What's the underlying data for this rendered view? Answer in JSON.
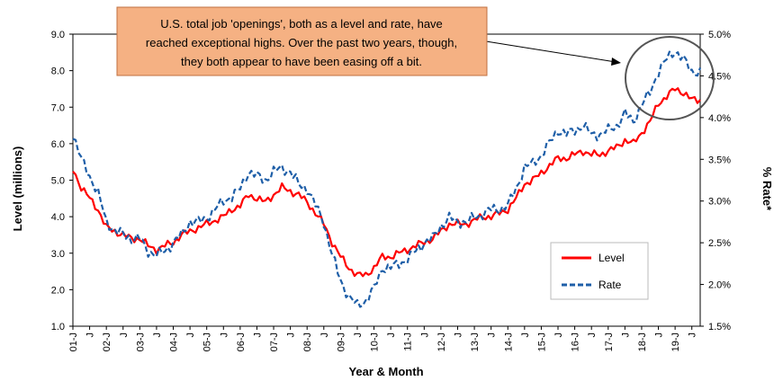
{
  "chart_data": {
    "type": "line",
    "title": "",
    "xlabel": "Year & Month",
    "ylabel_left": "Level (millions)",
    "ylabel_right": "% Rate*",
    "ylim_left": [
      1.0,
      9.0
    ],
    "ylim_right": [
      1.5,
      5.0
    ],
    "y_ticks_left": [
      "1.0",
      "2.0",
      "3.0",
      "4.0",
      "5.0",
      "6.0",
      "7.0",
      "8.0",
      "9.0"
    ],
    "y_ticks_right": [
      "1.5%",
      "2.0%",
      "2.5%",
      "3.0%",
      "3.5%",
      "4.0%",
      "4.5%",
      "5.0%"
    ],
    "x_ticks": [
      "01-J",
      "J",
      "02-J",
      "J",
      "03-J",
      "J",
      "04-J",
      "J",
      "05-J",
      "J",
      "06-J",
      "J",
      "07-J",
      "J",
      "08-J",
      "J",
      "09-J",
      "J",
      "10-J",
      "J",
      "11-J",
      "J",
      "12-J",
      "J",
      "13-J",
      "J",
      "14-J",
      "J",
      "15-J",
      "J",
      "16-J",
      "J",
      "17-J",
      "J",
      "18-J",
      "J",
      "19-J",
      "J"
    ],
    "x_range": [
      "2001-01",
      "2019-10"
    ],
    "grid": false,
    "legend_position": "bottom-right",
    "colors": {
      "level": "#ff0000",
      "rate": "#1f5fa8",
      "callout_fill": "#f5b183",
      "callout_border": "#c07040",
      "circle": "#555555"
    },
    "annotation": {
      "lines": [
        "U.S. total job 'openings', both as a level and rate, have",
        "reached exceptional highs. Over the past two years, though,",
        "they both appear to have been easing off a bit."
      ]
    },
    "series": [
      {
        "name": "Level",
        "axis": "left",
        "style": "solid",
        "points": [
          [
            "2001-01",
            5.3
          ],
          [
            "2001-04",
            4.8
          ],
          [
            "2001-07",
            4.5
          ],
          [
            "2001-10",
            4.2
          ],
          [
            "2002-01",
            3.7
          ],
          [
            "2002-04",
            3.6
          ],
          [
            "2002-07",
            3.5
          ],
          [
            "2002-10",
            3.4
          ],
          [
            "2003-01",
            3.4
          ],
          [
            "2003-04",
            3.2
          ],
          [
            "2003-07",
            3.1
          ],
          [
            "2003-10",
            3.2
          ],
          [
            "2004-01",
            3.3
          ],
          [
            "2004-04",
            3.5
          ],
          [
            "2004-07",
            3.6
          ],
          [
            "2004-10",
            3.7
          ],
          [
            "2005-01",
            3.8
          ],
          [
            "2005-04",
            3.9
          ],
          [
            "2005-07",
            4.0
          ],
          [
            "2005-10",
            4.2
          ],
          [
            "2006-01",
            4.3
          ],
          [
            "2006-04",
            4.6
          ],
          [
            "2006-07",
            4.5
          ],
          [
            "2006-10",
            4.4
          ],
          [
            "2007-01",
            4.6
          ],
          [
            "2007-04",
            4.8
          ],
          [
            "2007-07",
            4.7
          ],
          [
            "2007-10",
            4.6
          ],
          [
            "2008-01",
            4.4
          ],
          [
            "2008-04",
            4.1
          ],
          [
            "2008-07",
            3.8
          ],
          [
            "2008-10",
            3.3
          ],
          [
            "2009-01",
            2.9
          ],
          [
            "2009-04",
            2.6
          ],
          [
            "2009-07",
            2.4
          ],
          [
            "2009-10",
            2.4
          ],
          [
            "2010-01",
            2.6
          ],
          [
            "2010-04",
            2.9
          ],
          [
            "2010-07",
            2.9
          ],
          [
            "2010-10",
            3.0
          ],
          [
            "2011-01",
            3.1
          ],
          [
            "2011-04",
            3.2
          ],
          [
            "2011-07",
            3.3
          ],
          [
            "2011-10",
            3.4
          ],
          [
            "2012-01",
            3.6
          ],
          [
            "2012-04",
            3.8
          ],
          [
            "2012-07",
            3.8
          ],
          [
            "2012-10",
            3.8
          ],
          [
            "2013-01",
            3.9
          ],
          [
            "2013-04",
            4.0
          ],
          [
            "2013-07",
            4.0
          ],
          [
            "2013-10",
            4.1
          ],
          [
            "2014-01",
            4.2
          ],
          [
            "2014-04",
            4.5
          ],
          [
            "2014-07",
            4.9
          ],
          [
            "2014-10",
            5.0
          ],
          [
            "2015-01",
            5.2
          ],
          [
            "2015-04",
            5.4
          ],
          [
            "2015-07",
            5.6
          ],
          [
            "2015-10",
            5.6
          ],
          [
            "2016-01",
            5.7
          ],
          [
            "2016-04",
            5.8
          ],
          [
            "2016-07",
            5.7
          ],
          [
            "2016-10",
            5.7
          ],
          [
            "2017-01",
            5.8
          ],
          [
            "2017-04",
            5.9
          ],
          [
            "2017-07",
            6.1
          ],
          [
            "2017-10",
            6.0
          ],
          [
            "2018-01",
            6.3
          ],
          [
            "2018-04",
            6.6
          ],
          [
            "2018-07",
            7.1
          ],
          [
            "2018-10",
            7.3
          ],
          [
            "2019-01",
            7.5
          ],
          [
            "2019-04",
            7.4
          ],
          [
            "2019-07",
            7.2
          ],
          [
            "2019-10",
            7.2
          ]
        ]
      },
      {
        "name": "Rate",
        "axis": "right",
        "style": "dashed",
        "points": [
          [
            "2001-01",
            3.8
          ],
          [
            "2001-04",
            3.5
          ],
          [
            "2001-07",
            3.3
          ],
          [
            "2001-10",
            3.1
          ],
          [
            "2002-01",
            2.75
          ],
          [
            "2002-04",
            2.65
          ],
          [
            "2002-07",
            2.6
          ],
          [
            "2002-10",
            2.55
          ],
          [
            "2003-01",
            2.55
          ],
          [
            "2003-04",
            2.4
          ],
          [
            "2003-07",
            2.35
          ],
          [
            "2003-10",
            2.4
          ],
          [
            "2004-01",
            2.5
          ],
          [
            "2004-04",
            2.6
          ],
          [
            "2004-07",
            2.75
          ],
          [
            "2004-10",
            2.75
          ],
          [
            "2005-01",
            2.8
          ],
          [
            "2005-04",
            2.9
          ],
          [
            "2005-07",
            3.0
          ],
          [
            "2005-10",
            3.05
          ],
          [
            "2006-01",
            3.15
          ],
          [
            "2006-04",
            3.35
          ],
          [
            "2006-07",
            3.3
          ],
          [
            "2006-10",
            3.25
          ],
          [
            "2007-01",
            3.35
          ],
          [
            "2007-04",
            3.4
          ],
          [
            "2007-07",
            3.35
          ],
          [
            "2007-10",
            3.2
          ],
          [
            "2008-01",
            3.15
          ],
          [
            "2008-04",
            2.95
          ],
          [
            "2008-07",
            2.75
          ],
          [
            "2008-10",
            2.35
          ],
          [
            "2009-01",
            2.05
          ],
          [
            "2009-04",
            1.85
          ],
          [
            "2009-07",
            1.75
          ],
          [
            "2009-10",
            1.8
          ],
          [
            "2010-01",
            1.95
          ],
          [
            "2010-04",
            2.2
          ],
          [
            "2010-07",
            2.2
          ],
          [
            "2010-10",
            2.25
          ],
          [
            "2011-01",
            2.3
          ],
          [
            "2011-04",
            2.4
          ],
          [
            "2011-07",
            2.5
          ],
          [
            "2011-10",
            2.55
          ],
          [
            "2012-01",
            2.7
          ],
          [
            "2012-04",
            2.8
          ],
          [
            "2012-07",
            2.75
          ],
          [
            "2012-10",
            2.75
          ],
          [
            "2013-01",
            2.8
          ],
          [
            "2013-04",
            2.85
          ],
          [
            "2013-07",
            2.9
          ],
          [
            "2013-10",
            2.9
          ],
          [
            "2014-01",
            2.95
          ],
          [
            "2014-04",
            3.15
          ],
          [
            "2014-07",
            3.4
          ],
          [
            "2014-10",
            3.45
          ],
          [
            "2015-01",
            3.55
          ],
          [
            "2015-04",
            3.7
          ],
          [
            "2015-07",
            3.85
          ],
          [
            "2015-10",
            3.8
          ],
          [
            "2016-01",
            3.85
          ],
          [
            "2016-04",
            3.9
          ],
          [
            "2016-07",
            3.8
          ],
          [
            "2016-10",
            3.8
          ],
          [
            "2017-01",
            3.85
          ],
          [
            "2017-04",
            3.9
          ],
          [
            "2017-07",
            4.05
          ],
          [
            "2017-10",
            3.95
          ],
          [
            "2018-01",
            4.15
          ],
          [
            "2018-04",
            4.3
          ],
          [
            "2018-07",
            4.55
          ],
          [
            "2018-10",
            4.7
          ],
          [
            "2019-01",
            4.8
          ],
          [
            "2019-04",
            4.7
          ],
          [
            "2019-07",
            4.55
          ],
          [
            "2019-10",
            4.55
          ]
        ]
      }
    ]
  }
}
